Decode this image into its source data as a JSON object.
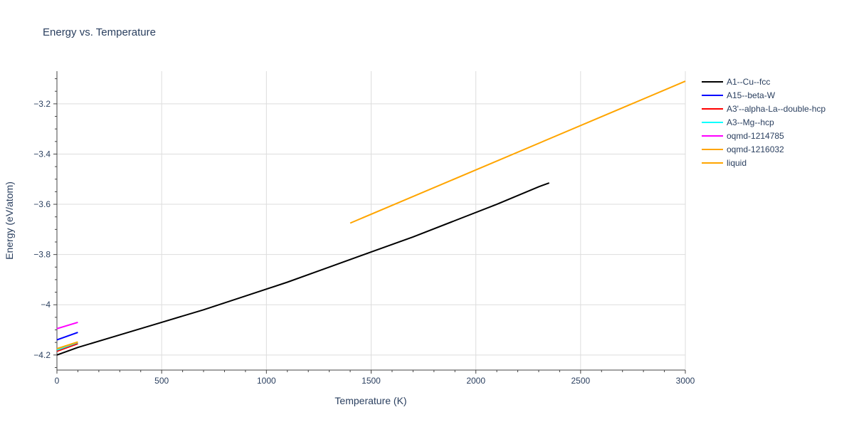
{
  "chart_data": {
    "type": "line",
    "title": "Energy vs. Temperature",
    "xlabel": "Temperature (K)",
    "ylabel": "Energy (eV/atom)",
    "xlim": [
      0,
      3000
    ],
    "ylim": [
      -4.26,
      -3.07
    ],
    "x_ticks": [
      0,
      500,
      1000,
      1500,
      2000,
      2500,
      3000
    ],
    "x_tick_labels": [
      "0",
      "500",
      "1000",
      "1500",
      "2000",
      "2500",
      "3000"
    ],
    "y_ticks": [
      -4.2,
      -4.0,
      -3.8,
      -3.6,
      -3.4,
      -3.2
    ],
    "y_tick_labels": [
      "−4.2",
      "−4",
      "−3.8",
      "−3.6",
      "−3.4",
      "−3.2"
    ],
    "grid": true,
    "legend_position": "top-right outside",
    "series": [
      {
        "name": "A1--Cu--fcc",
        "color": "#000000",
        "x": [
          0,
          100,
          300,
          500,
          700,
          900,
          1100,
          1300,
          1500,
          1700,
          1900,
          2100,
          2300,
          2350
        ],
        "y": [
          -4.2,
          -4.17,
          -4.12,
          -4.07,
          -4.02,
          -3.965,
          -3.91,
          -3.85,
          -3.79,
          -3.73,
          -3.665,
          -3.6,
          -3.53,
          -3.515
        ]
      },
      {
        "name": "A15--beta-W",
        "color": "#0000ff",
        "x": [
          0,
          100
        ],
        "y": [
          -4.14,
          -4.11
        ]
      },
      {
        "name": "A3'--alpha-La--double-hcp",
        "color": "#ff0000",
        "x": [
          0,
          100
        ],
        "y": [
          -4.185,
          -4.155
        ]
      },
      {
        "name": "A3--Mg--hcp",
        "color": "#00ffff",
        "x": [
          0,
          100
        ],
        "y": [
          -4.18,
          -4.15
        ]
      },
      {
        "name": "oqmd-1214785",
        "color": "#ff00ff",
        "x": [
          0,
          100
        ],
        "y": [
          -4.095,
          -4.07
        ]
      },
      {
        "name": "oqmd-1216032",
        "color": "#ffa500",
        "x": [
          0,
          100
        ],
        "y": [
          -4.175,
          -4.148
        ]
      },
      {
        "name": "liquid",
        "color": "#ffa500",
        "x": [
          1400,
          3000
        ],
        "y": [
          -3.675,
          -3.11
        ]
      }
    ]
  }
}
